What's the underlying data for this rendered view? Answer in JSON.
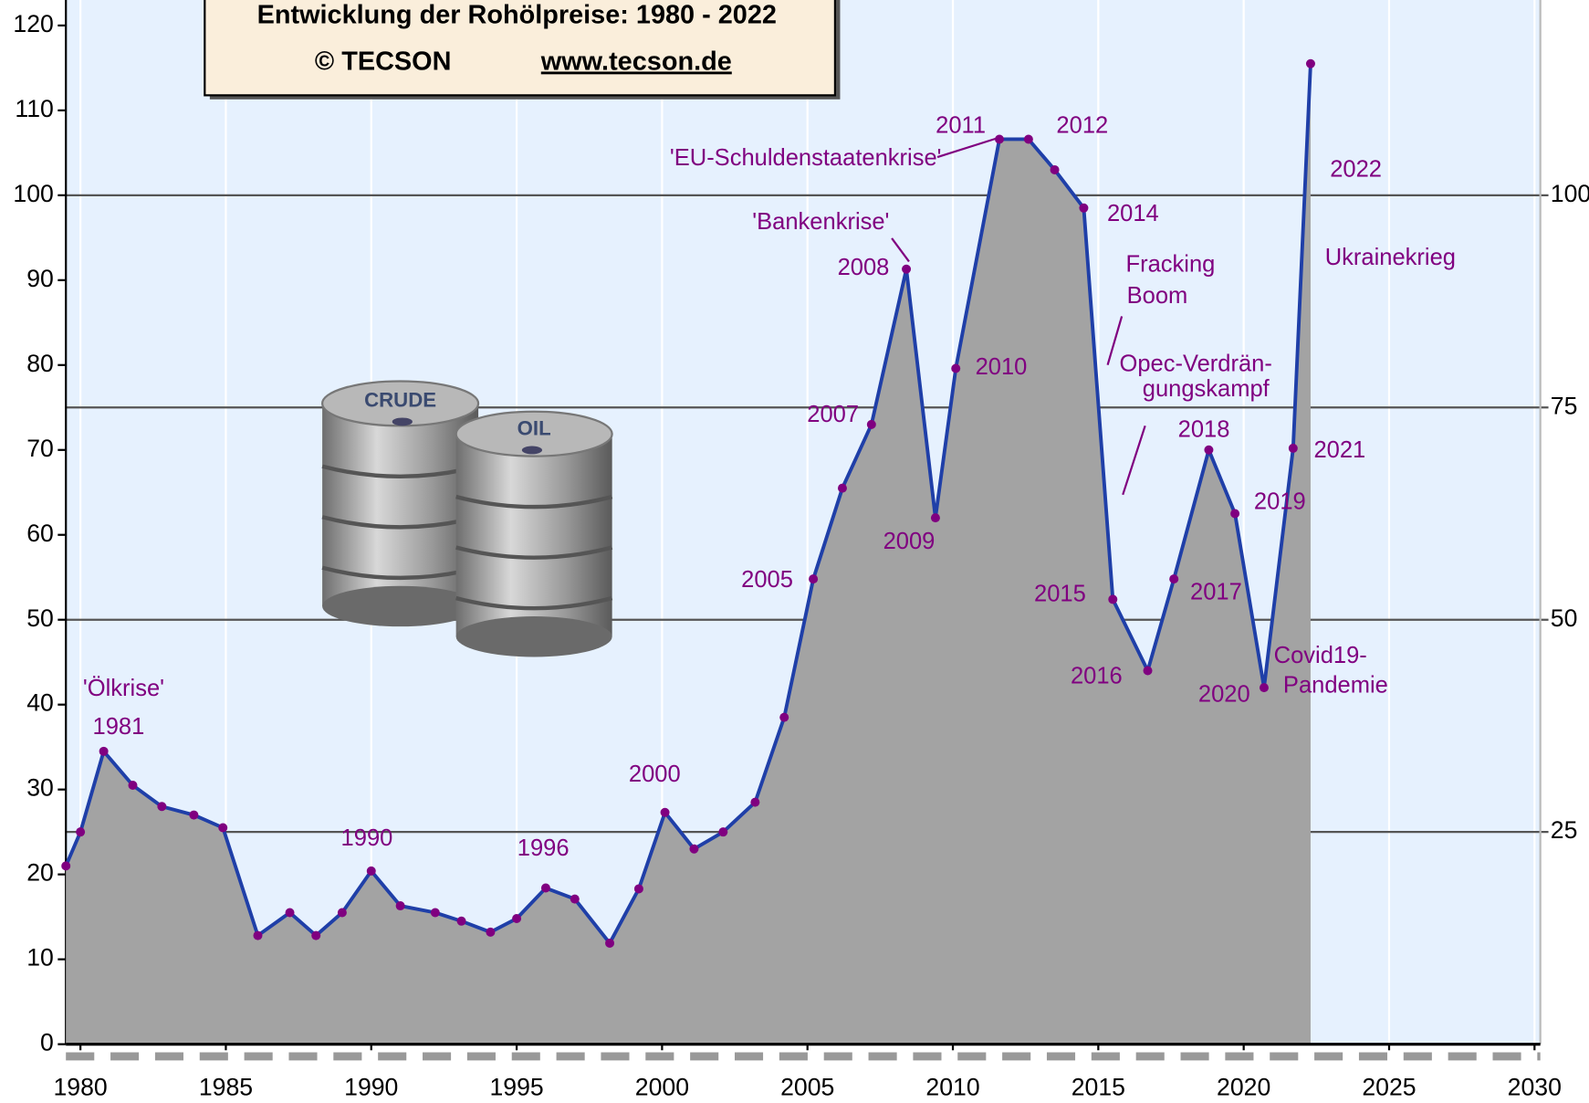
{
  "chart_data": {
    "type": "area",
    "title": "Entwicklung der Rohölpreise:  1980 - 2022",
    "source": "© TECSON",
    "url": "www.tecson.de",
    "image_text": [
      "CRUDE",
      "OIL"
    ],
    "x": [
      1979.5,
      1980.0,
      1980.8,
      1981.8,
      1982.8,
      1983.9,
      1984.9,
      1986.1,
      1987.2,
      1988.1,
      1989.0,
      1990.0,
      1991.0,
      1992.2,
      1993.1,
      1994.1,
      1995.0,
      1996.0,
      1997.0,
      1998.2,
      1999.2,
      2000.1,
      2001.1,
      2002.1,
      2003.2,
      2004.2,
      2005.2,
      2006.2,
      2007.2,
      2008.4,
      2009.4,
      2010.1,
      2011.6,
      2012.6,
      2013.5,
      2014.5,
      2015.5,
      2016.7,
      2017.6,
      2018.8,
      2019.7,
      2020.7,
      2021.7,
      2022.3
    ],
    "series": [
      {
        "name": "Rohölpreis",
        "color": "#1f3fa8",
        "fill": "#a3a3a3",
        "values": [
          21,
          25,
          34.5,
          30.5,
          28,
          27,
          25.5,
          12.8,
          15.5,
          12.8,
          15.5,
          20.4,
          16.3,
          15.5,
          14.5,
          13.2,
          14.8,
          18.4,
          17.1,
          11.9,
          18.3,
          27.3,
          23,
          25,
          28.5,
          38.5,
          54.8,
          65.5,
          73,
          91.3,
          62,
          79.6,
          106.6,
          106.6,
          103,
          98.5,
          52.4,
          44,
          54.8,
          70,
          62.5,
          42,
          70.2,
          115.5
        ]
      }
    ],
    "marker_color": "#800080",
    "xlim": [
      1979.5,
      2030.2
    ],
    "xticks": [
      1980,
      1985,
      1990,
      1995,
      2000,
      2005,
      2010,
      2015,
      2020,
      2025,
      2030
    ],
    "ylim": [
      0,
      123
    ],
    "yticks": [
      0,
      10,
      20,
      30,
      40,
      50,
      60,
      70,
      80,
      90,
      100,
      110,
      120
    ],
    "y2lim": [
      0,
      123
    ],
    "y2ticks": [
      25,
      50,
      75,
      100
    ],
    "grid": true,
    "annotations": [
      "'Ölkrise'",
      "1981",
      "1990",
      "1996",
      "2000",
      "2005",
      "2007",
      "'Bankenkrise'",
      "2008",
      "2009",
      "2010",
      "'EU-Schuldenstaatenkrise'",
      "2011",
      "2012",
      "2014",
      "Fracking",
      "Boom",
      "Opec-Verdrän-",
      "gungskampf",
      "2015",
      "2016",
      "2017",
      "2018",
      "2019",
      "2020",
      "Covid19-",
      "Pandemie",
      "2021",
      "2022",
      "Ukrainekrieg"
    ]
  }
}
